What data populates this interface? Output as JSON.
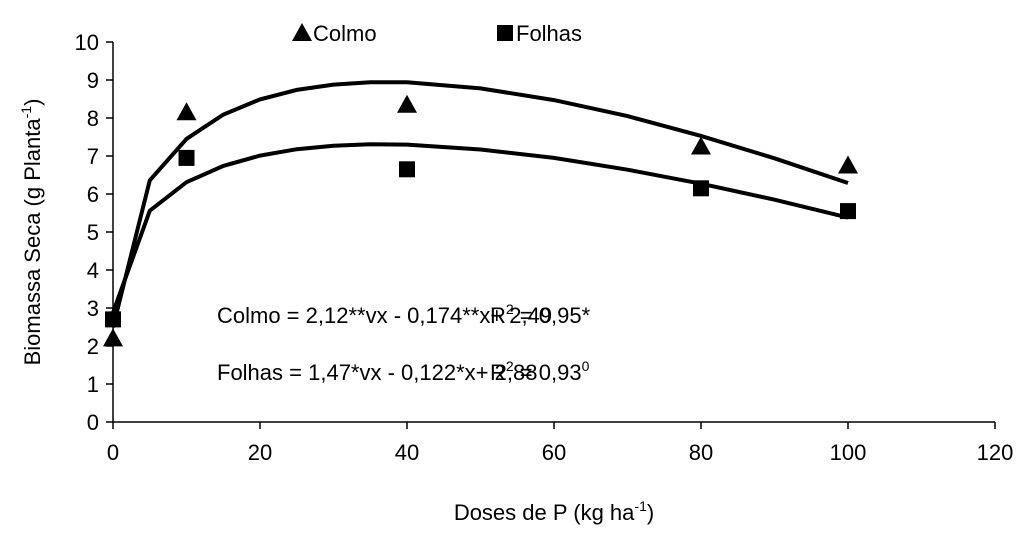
{
  "chart_data": {
    "type": "scatter",
    "x_label": [
      {
        "text": "Doses de P (kg ha"
      },
      {
        "text": "-1",
        "sup": true
      },
      {
        "text": ")"
      }
    ],
    "y_label": [
      {
        "text": "Biomassa Seca (g Planta"
      },
      {
        "text": "-1",
        "sup": true
      },
      {
        "text": ")"
      }
    ],
    "xlim": [
      0,
      120
    ],
    "xticks": [
      0,
      20,
      40,
      60,
      80,
      100,
      120
    ],
    "ylim": [
      0,
      10
    ],
    "yticks": [
      0,
      1,
      2,
      3,
      4,
      5,
      6,
      7,
      8,
      9,
      10
    ],
    "grid": false,
    "legend": "top",
    "series": [
      {
        "name": "Colmo",
        "marker": "triangle",
        "color": "#000000",
        "x": [
          0,
          10,
          40,
          80,
          100
        ],
        "values": [
          2.2,
          8.15,
          8.35,
          7.25,
          6.75
        ]
      },
      {
        "name": "Folhas",
        "marker": "square",
        "color": "#000000",
        "x": [
          0,
          10,
          40,
          80,
          100
        ],
        "values": [
          2.7,
          6.95,
          6.65,
          6.15,
          5.55
        ]
      }
    ],
    "fit_x": [
      0,
      5,
      10,
      15,
      20,
      25,
      30,
      35,
      40,
      50,
      60,
      70,
      80,
      90,
      100
    ],
    "fits": [
      {
        "color": "#000000",
        "values": [
          2.49,
          6.36,
          7.45,
          8.09,
          8.49,
          8.74,
          8.88,
          8.94,
          8.94,
          8.78,
          8.47,
          8.05,
          7.53,
          6.94,
          6.29
        ]
      },
      {
        "color": "#000000",
        "values": [
          2.88,
          5.56,
          6.31,
          6.74,
          7.01,
          7.18,
          7.27,
          7.31,
          7.3,
          7.17,
          6.95,
          6.64,
          6.27,
          5.85,
          5.38
        ]
      }
    ],
    "annotations": [
      {
        "text": "Colmo = 2,12**vx - 0,174**x+ 2,49",
        "r2": [
          {
            "text": "R"
          },
          {
            "text": "2",
            "sup": true
          },
          {
            "text": " = 0,95*"
          }
        ]
      },
      {
        "text": "Folhas = 1,47*vx - 0,122*x+ 2,88",
        "r2": [
          {
            "text": "R"
          },
          {
            "text": "2",
            "sup": true
          },
          {
            "text": " = 0,93"
          },
          {
            "text": "0",
            "sup": true
          }
        ]
      }
    ]
  }
}
